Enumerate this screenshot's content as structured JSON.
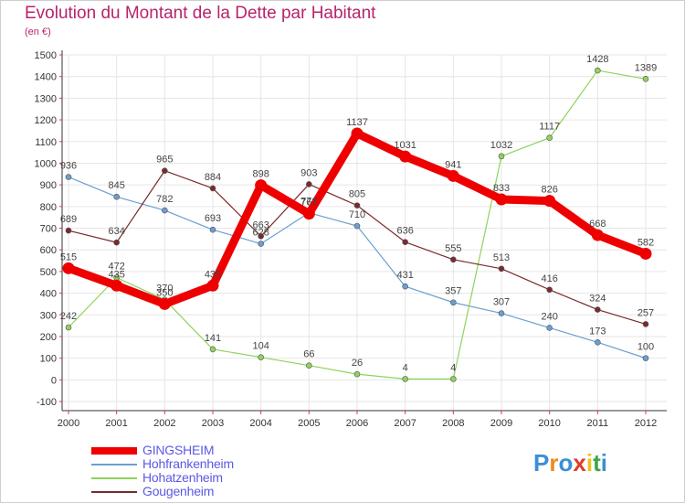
{
  "title": "Evolution du Montant de la Dette par Habitant",
  "subtitle": "(en €)",
  "logo": {
    "letters": [
      "P",
      "r",
      "o",
      "x",
      "i",
      "t",
      "i"
    ],
    "colors": [
      "#3a8fd6",
      "#f08a1c",
      "#3a8fd6",
      "#e03a2a",
      "#f0c11c",
      "#3aa64a",
      "#3a8fd6"
    ]
  },
  "chart_data": {
    "type": "line",
    "categories": [
      "2000",
      "2001",
      "2002",
      "2003",
      "2004",
      "2005",
      "2006",
      "2007",
      "2008",
      "2009",
      "2010",
      "2011",
      "2012"
    ],
    "ylim": [
      -100,
      1500
    ],
    "yticks": [
      "1500",
      "1400",
      "1300",
      "1200",
      "1100",
      "1000",
      "900",
      "800",
      "700",
      "600",
      "500",
      "400",
      "300",
      "200",
      "100",
      "0",
      "-100"
    ],
    "grid": true,
    "legend_position": "bottom-left",
    "series": [
      {
        "name": "GINGSHEIM",
        "color": "#ee0000",
        "width": 9,
        "values": [
          515,
          435,
          350,
          435,
          898,
          767,
          1137,
          1031,
          941,
          833,
          826,
          668,
          582
        ],
        "labels": [
          "515",
          "435",
          "350",
          "435",
          "898",
          "767",
          "1137",
          "1031",
          "941",
          "833",
          "826",
          "668",
          "582"
        ]
      },
      {
        "name": "Hohfrankenheim",
        "color": "#6a9fd0",
        "width": 1.2,
        "values": [
          936,
          845,
          782,
          693,
          628,
          771,
          710,
          431,
          357,
          307,
          240,
          173,
          100
        ],
        "labels": [
          "936",
          "845",
          "782",
          "693",
          "628",
          "771",
          "710",
          "431",
          "357",
          "307",
          "240",
          "173",
          "100"
        ]
      },
      {
        "name": "Hohatzenheim",
        "color": "#8fd35a",
        "width": 1.2,
        "values": [
          242,
          472,
          370,
          141,
          104,
          66,
          26,
          4,
          4,
          1032,
          1117,
          1428,
          1389
        ],
        "labels": [
          "242",
          "472",
          "370",
          "141",
          "104",
          "66",
          "26",
          "4",
          "4",
          "1032",
          "1117",
          "1428",
          "1389"
        ]
      },
      {
        "name": "Gougenheim",
        "color": "#7a2b2b",
        "width": 1.2,
        "values": [
          689,
          634,
          965,
          884,
          663,
          903,
          805,
          636,
          555,
          513,
          416,
          324,
          257
        ],
        "labels": [
          "689",
          "634",
          "965",
          "884",
          "663",
          "903",
          "805",
          "636",
          "555",
          "513",
          "416",
          "324",
          "257"
        ]
      }
    ]
  }
}
